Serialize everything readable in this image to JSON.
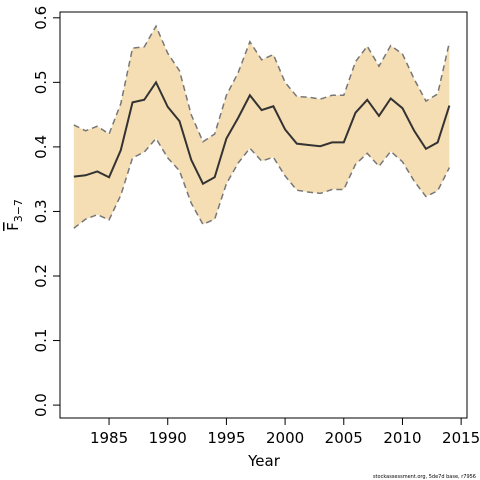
{
  "chart_data": {
    "type": "band-line",
    "xlabel": "Year",
    "ylabel": "F",
    "ylabel_subscript": "3−7",
    "footnote": "stockassessment.org, 5de7d base, r7956",
    "x": [
      1982,
      1983,
      1984,
      1985,
      1986,
      1987,
      1988,
      1989,
      1990,
      1991,
      1992,
      1993,
      1994,
      1995,
      1996,
      1997,
      1998,
      1999,
      2000,
      2001,
      2002,
      2003,
      2004,
      2005,
      2006,
      2007,
      2008,
      2009,
      2010,
      2011,
      2012,
      2013,
      2014
    ],
    "values": [
      0.354,
      0.356,
      0.362,
      0.353,
      0.395,
      0.469,
      0.473,
      0.5,
      0.462,
      0.44,
      0.38,
      0.343,
      0.353,
      0.413,
      0.445,
      0.48,
      0.457,
      0.463,
      0.427,
      0.405,
      0.403,
      0.401,
      0.407,
      0.407,
      0.453,
      0.473,
      0.448,
      0.475,
      0.46,
      0.425,
      0.397,
      0.407,
      0.464
    ],
    "upper": [
      0.434,
      0.425,
      0.432,
      0.42,
      0.467,
      0.553,
      0.555,
      0.587,
      0.545,
      0.518,
      0.45,
      0.408,
      0.42,
      0.48,
      0.515,
      0.563,
      0.535,
      0.543,
      0.5,
      0.478,
      0.477,
      0.474,
      0.48,
      0.48,
      0.532,
      0.556,
      0.525,
      0.557,
      0.544,
      0.505,
      0.471,
      0.482,
      0.562
    ],
    "lower": [
      0.274,
      0.288,
      0.295,
      0.287,
      0.325,
      0.383,
      0.392,
      0.413,
      0.383,
      0.363,
      0.313,
      0.28,
      0.288,
      0.343,
      0.375,
      0.398,
      0.378,
      0.384,
      0.355,
      0.333,
      0.33,
      0.328,
      0.334,
      0.334,
      0.373,
      0.39,
      0.37,
      0.393,
      0.377,
      0.347,
      0.323,
      0.332,
      0.368
    ],
    "color": "#333333",
    "band_color": "#f5deb3",
    "band_edge_color": "#777777",
    "xlim": [
      1980.82,
      2015.5
    ],
    "xticks": [
      1985,
      1990,
      1995,
      2000,
      2005,
      2010,
      2015
    ],
    "ylim": [
      -0.02,
      0.609
    ],
    "yticks": [
      {
        "value": 0,
        "label": "0.0"
      },
      0.1,
      0.2,
      0.3,
      0.4,
      0.5,
      0.6
    ]
  }
}
